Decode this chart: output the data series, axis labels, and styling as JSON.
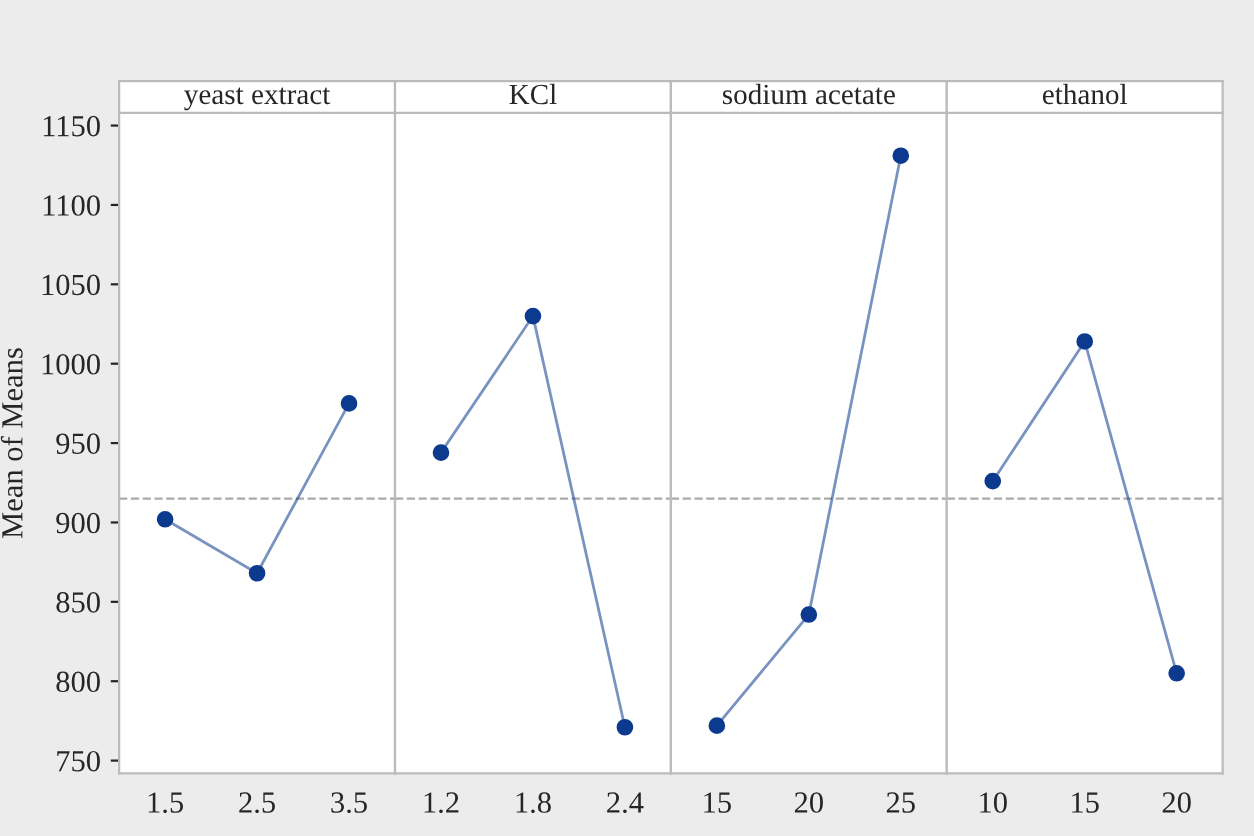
{
  "chart_data": [
    {
      "type": "line",
      "title": "yeast extract",
      "ylabel": "Mean of Means",
      "categories": [
        "1.5",
        "2.5",
        "3.5"
      ],
      "series": [
        {
          "color": "#0b3a8e",
          "values": [
            902,
            868,
            975
          ]
        }
      ],
      "ylim": [
        742,
        1158
      ],
      "yticks": [
        750,
        800,
        850,
        900,
        950,
        1000,
        1050,
        1100,
        1150
      ],
      "marker": "circle",
      "line_style": "solid",
      "ref_lines": [
        {
          "axis": "y",
          "value": 915,
          "line_style": "dashed",
          "color": "#aaaaaa"
        }
      ]
    },
    {
      "type": "line",
      "title": "KCl",
      "categories": [
        "1.2",
        "1.8",
        "2.4"
      ],
      "series": [
        {
          "color": "#0b3a8e",
          "values": [
            944,
            1030,
            771
          ]
        }
      ],
      "ylim": [
        742,
        1158
      ],
      "yticks": [
        750,
        800,
        850,
        900,
        950,
        1000,
        1050,
        1100,
        1150
      ],
      "tick_labels": "x",
      "marker": "circle",
      "line_style": "solid",
      "ref_lines": [
        {
          "axis": "y",
          "value": 915,
          "line_style": "dashed",
          "color": "#aaaaaa"
        }
      ]
    },
    {
      "type": "line",
      "title": "sodium acetate",
      "categories": [
        "15",
        "20",
        "25"
      ],
      "series": [
        {
          "color": "#0b3a8e",
          "values": [
            772,
            842,
            1131
          ]
        }
      ],
      "ylim": [
        742,
        1158
      ],
      "yticks": [
        750,
        800,
        850,
        900,
        950,
        1000,
        1050,
        1100,
        1150
      ],
      "tick_labels": "x",
      "marker": "circle",
      "line_style": "solid",
      "ref_lines": [
        {
          "axis": "y",
          "value": 915,
          "line_style": "dashed",
          "color": "#aaaaaa"
        }
      ]
    },
    {
      "type": "line",
      "title": "ethanol",
      "categories": [
        "10",
        "15",
        "20"
      ],
      "series": [
        {
          "color": "#0b3a8e",
          "values": [
            926,
            1014,
            805
          ]
        }
      ],
      "ylim": [
        742,
        1158
      ],
      "yticks": [
        750,
        800,
        850,
        900,
        950,
        1000,
        1050,
        1100,
        1150
      ],
      "tick_labels": "x",
      "marker": "circle",
      "line_style": "solid",
      "ref_lines": [
        {
          "axis": "y",
          "value": 915,
          "line_style": "dashed",
          "color": "#aaaaaa"
        }
      ]
    }
  ]
}
